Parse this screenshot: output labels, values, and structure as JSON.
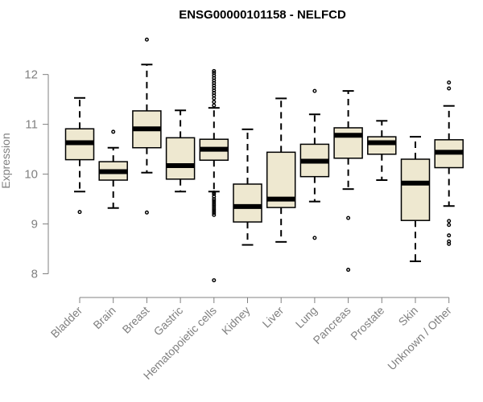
{
  "chart_data": {
    "type": "boxplot",
    "title": "ENSG00000101158 - NELFCD",
    "ylabel": "Expression",
    "xlabel": "",
    "ylim": [
      7.75,
      12.85
    ],
    "yticks": [
      8,
      9,
      10,
      11,
      12
    ],
    "box_fill": "#eee8d0",
    "categories": [
      "Bladder",
      "Brain",
      "Breast",
      "Gastric",
      "Hematopoietic cells",
      "Kidney",
      "Liver",
      "Lung",
      "Pancreas",
      "Prostate",
      "Skin",
      "Unknown / Other"
    ],
    "series": [
      {
        "name": "Bladder",
        "whisker_low": 9.65,
        "q1": 10.29,
        "median": 10.63,
        "q3": 10.91,
        "whisker_high": 11.53,
        "outliers": [
          9.24
        ]
      },
      {
        "name": "Brain",
        "whisker_low": 9.32,
        "q1": 9.88,
        "median": 10.05,
        "q3": 10.25,
        "whisker_high": 10.53,
        "outliers": [
          10.85
        ]
      },
      {
        "name": "Breast",
        "whisker_low": 10.03,
        "q1": 10.53,
        "median": 10.91,
        "q3": 11.27,
        "whisker_high": 12.2,
        "outliers": [
          9.23,
          12.7
        ]
      },
      {
        "name": "Gastric",
        "whisker_low": 9.65,
        "q1": 9.9,
        "median": 10.17,
        "q3": 10.73,
        "whisker_high": 11.28,
        "outliers": []
      },
      {
        "name": "Hematopoietic cells",
        "whisker_low": 9.65,
        "q1": 10.28,
        "median": 10.5,
        "q3": 10.7,
        "whisker_high": 11.33,
        "outliers": [
          7.87,
          9.18,
          9.22,
          9.26,
          9.3,
          9.34,
          9.38,
          9.42,
          9.46,
          9.5,
          9.55,
          9.6,
          9.63,
          11.38,
          11.45,
          11.52,
          11.58,
          11.63,
          11.68,
          11.73,
          11.78,
          11.83,
          11.88,
          11.93,
          11.98,
          12.03,
          12.07
        ]
      },
      {
        "name": "Kidney",
        "whisker_low": 8.58,
        "q1": 9.04,
        "median": 9.35,
        "q3": 9.8,
        "whisker_high": 10.9,
        "outliers": []
      },
      {
        "name": "Liver",
        "whisker_low": 8.64,
        "q1": 9.33,
        "median": 9.5,
        "q3": 10.44,
        "whisker_high": 11.52,
        "outliers": []
      },
      {
        "name": "Lung",
        "whisker_low": 9.45,
        "q1": 9.95,
        "median": 10.26,
        "q3": 10.6,
        "whisker_high": 11.2,
        "outliers": [
          8.72,
          11.67
        ]
      },
      {
        "name": "Pancreas",
        "whisker_low": 9.7,
        "q1": 10.32,
        "median": 10.78,
        "q3": 10.93,
        "whisker_high": 11.67,
        "outliers": [
          8.08,
          9.12
        ]
      },
      {
        "name": "Prostate",
        "whisker_low": 9.88,
        "q1": 10.4,
        "median": 10.63,
        "q3": 10.75,
        "whisker_high": 11.07,
        "outliers": []
      },
      {
        "name": "Skin",
        "whisker_low": 8.25,
        "q1": 9.07,
        "median": 9.82,
        "q3": 10.3,
        "whisker_high": 10.75,
        "outliers": []
      },
      {
        "name": "Unknown / Other",
        "whisker_low": 9.36,
        "q1": 10.13,
        "median": 10.44,
        "q3": 10.69,
        "whisker_high": 11.37,
        "outliers": [
          8.6,
          8.65,
          8.77,
          8.98,
          9.06,
          11.72,
          11.84
        ]
      }
    ]
  }
}
